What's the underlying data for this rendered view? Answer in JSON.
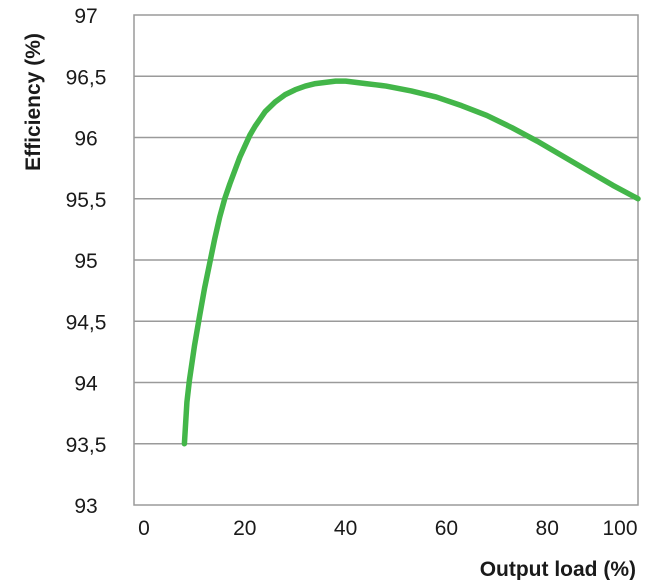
{
  "chart_data": {
    "type": "line",
    "title": "",
    "xlabel": "Output load (%)",
    "ylabel": "Efficiency (%)",
    "xlim": [
      0,
      100
    ],
    "ylim": [
      93,
      97
    ],
    "xticks": [
      "0",
      "20",
      "40",
      "60",
      "80",
      "100"
    ],
    "yticks": [
      "93",
      "93,5",
      "94",
      "94,5",
      "95",
      "95,5",
      "96",
      "96,5",
      "97"
    ],
    "grid": "horizontal",
    "legend": "none",
    "colors": {
      "line": "#43b649",
      "grid": "#9a9a9a",
      "frame": "#9a9a9a",
      "text": "#1a1a1a"
    },
    "series": [
      {
        "x": [
          10,
          10.5,
          11,
          12,
          13,
          14,
          15,
          16,
          17,
          18,
          19,
          20,
          21,
          22,
          23,
          24,
          25,
          26,
          27,
          28,
          29,
          30,
          32,
          34,
          36,
          38,
          40,
          42,
          44,
          46,
          48,
          50,
          55,
          60,
          65,
          70,
          75,
          80,
          85,
          90,
          95,
          100
        ],
        "y": [
          93.5,
          93.84,
          94.02,
          94.3,
          94.54,
          94.77,
          94.97,
          95.17,
          95.35,
          95.5,
          95.62,
          95.73,
          95.84,
          95.93,
          96.02,
          96.09,
          96.15,
          96.21,
          96.25,
          96.29,
          96.32,
          96.35,
          96.39,
          96.42,
          96.44,
          96.45,
          96.46,
          96.46,
          96.45,
          96.44,
          96.43,
          96.42,
          96.38,
          96.33,
          96.26,
          96.18,
          96.08,
          95.97,
          95.85,
          95.73,
          95.61,
          95.5
        ]
      }
    ]
  }
}
